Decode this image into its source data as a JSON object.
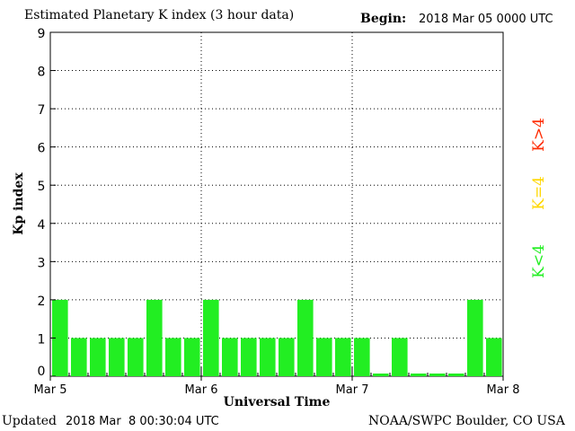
{
  "header": {
    "title": "Estimated Planetary K index (3 hour data)",
    "begin_label": "Begin:",
    "begin_value": "2018 Mar 05 0000 UTC"
  },
  "footer": {
    "updated_label": "Updated",
    "updated_value": "2018 Mar  8 00:30:04 UTC",
    "source": "NOAA/SWPC Boulder, CO USA"
  },
  "legend": [
    {
      "label": "K>4",
      "color": "#ff2a00"
    },
    {
      "label": "K=4",
      "color": "#ffd700"
    },
    {
      "label": "K<4",
      "color": "#22ee22"
    }
  ],
  "chart_data": {
    "type": "bar",
    "title": "Estimated Planetary K index (3 hour data)",
    "xlabel": "Universal Time",
    "ylabel": "Kp index",
    "ylim": [
      0,
      9
    ],
    "yticks": [
      0,
      1,
      2,
      3,
      4,
      5,
      6,
      7,
      8,
      9
    ],
    "xticks": [
      "Mar 5",
      "Mar 6",
      "Mar 7",
      "Mar 8"
    ],
    "interval_hours": 3,
    "grid": true,
    "bar_color": "#22ee22",
    "values": [
      2,
      1,
      1,
      1,
      1,
      2,
      1,
      1,
      2,
      1,
      1,
      1,
      1,
      2,
      1,
      1,
      1,
      0,
      1,
      0,
      0,
      0,
      2,
      1
    ]
  }
}
